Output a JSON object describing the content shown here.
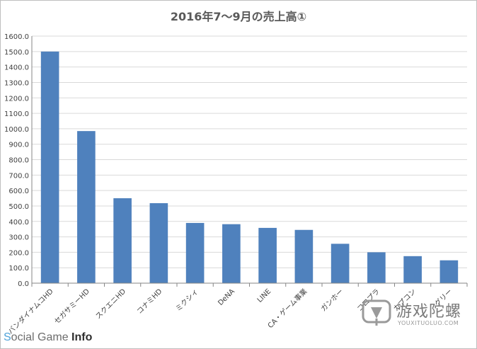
{
  "chart_data": {
    "type": "bar",
    "title": "2016年7～9月の売上高①",
    "categories": [
      "バンダイナムコHD",
      "セガサミーHD",
      "スクエニHD",
      "コナミHD",
      "ミクシィ",
      "DeNA",
      "LINE",
      "CA・ゲーム事業",
      "ガンホー",
      "コロプラ",
      "カプコン",
      "グリー"
    ],
    "values": [
      1500.0,
      985.0,
      550.0,
      518.0,
      390.0,
      382.0,
      358.0,
      345.0,
      255.0,
      200.0,
      175.0,
      148.0
    ],
    "y_ticks": [
      "0.0",
      "100.0",
      "200.0",
      "300.0",
      "400.0",
      "500.0",
      "600.0",
      "700.0",
      "800.0",
      "900.0",
      "1000.0",
      "1100.0",
      "1200.0",
      "1300.0",
      "1400.0",
      "1500.0",
      "1600.0"
    ],
    "ylim": [
      0,
      1600
    ],
    "grid": true,
    "legend": "none",
    "bar_color": "#4f81bd",
    "grid_color": "#d9d9d9"
  },
  "brand": {
    "part1": "S",
    "part2": "ocial Game ",
    "part3": "Info"
  },
  "watermark": {
    "name": "游戏陀螺",
    "url": "YOUXITUOLUO.COM"
  }
}
